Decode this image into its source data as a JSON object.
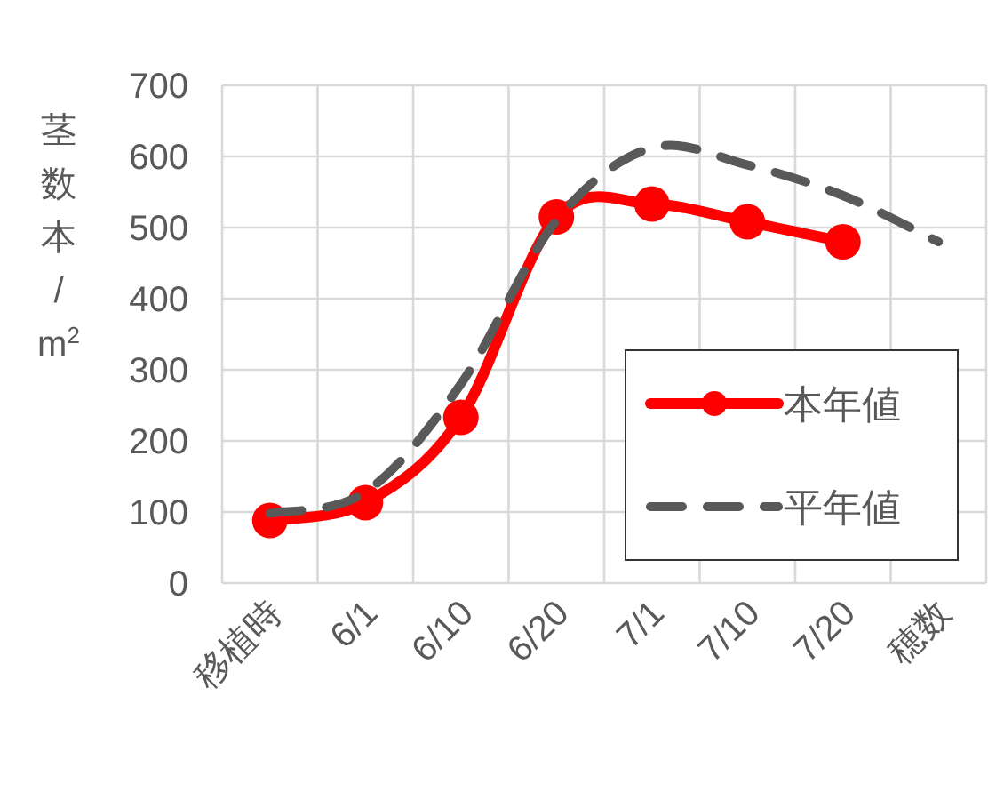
{
  "chart_data": {
    "type": "line",
    "ylabel": "茎数本/m$^{2}$",
    "categories": [
      "移植時",
      "6/1",
      "6/10",
      "6/20",
      "7/1",
      "7/10",
      "7/20",
      "穂数"
    ],
    "series": [
      {
        "name": "本年値",
        "color": "#ff0000",
        "values": [
          88,
          113,
          233,
          515,
          533,
          508,
          480,
          null
        ],
        "marker": "circle",
        "line_style": "solid"
      },
      {
        "name": "平年値",
        "color": "#595959",
        "values": [
          98,
          128,
          280,
          510,
          612,
          588,
          545,
          480
        ],
        "marker": "none",
        "line_style": "dashed"
      }
    ],
    "ylim": [
      0,
      700
    ],
    "yticks": [
      0,
      100,
      200,
      300,
      400,
      500,
      600,
      700
    ],
    "grid": true,
    "legend": "right"
  }
}
